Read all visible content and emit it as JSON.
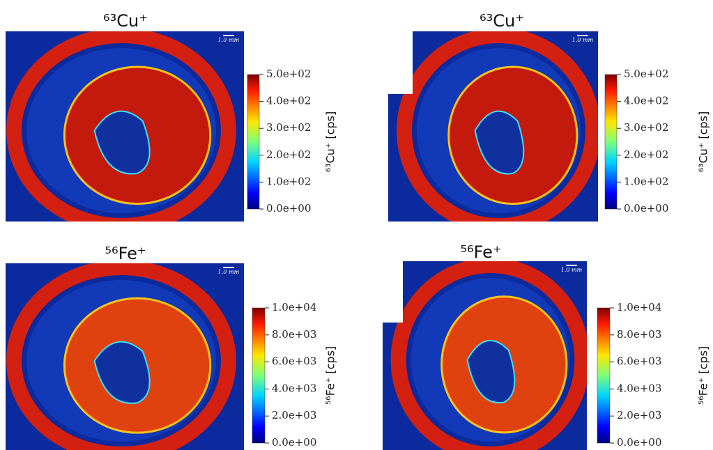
{
  "chart_data": [
    {
      "type": "heatmap",
      "title": "⁶³Cu⁺",
      "colorbar_label": "⁶³Cu⁺ [cps]",
      "scale_bar": "1.0 mm",
      "colormap": "jet",
      "clim": [
        0,
        500
      ],
      "cticks": [
        {
          "value": 0,
          "label": "0.0e+00"
        },
        {
          "value": 100,
          "label": "1.0e+02"
        },
        {
          "value": 200,
          "label": "2.0e+02"
        },
        {
          "value": 300,
          "label": "3.0e+02"
        },
        {
          "value": 400,
          "label": "4.0e+02"
        },
        {
          "value": 500,
          "label": "5.0e+02"
        }
      ]
    },
    {
      "type": "heatmap",
      "title": "⁶³Cu⁺",
      "colorbar_label": "⁶³Cu⁺ [cps]",
      "scale_bar": "1.0 mm",
      "colormap": "jet",
      "clim": [
        0,
        500
      ],
      "cticks": [
        {
          "value": 0,
          "label": "0.0e+00"
        },
        {
          "value": 100,
          "label": "1.0e+02"
        },
        {
          "value": 200,
          "label": "2.0e+02"
        },
        {
          "value": 300,
          "label": "3.0e+02"
        },
        {
          "value": 400,
          "label": "4.0e+02"
        },
        {
          "value": 500,
          "label": "5.0e+02"
        }
      ]
    },
    {
      "type": "heatmap",
      "title": "⁵⁶Fe⁺",
      "colorbar_label": "⁵⁶Fe⁺ [cps]",
      "scale_bar": "1.0 mm",
      "colormap": "jet",
      "clim": [
        0,
        10000
      ],
      "cticks": [
        {
          "value": 0,
          "label": "0.0e+00"
        },
        {
          "value": 2000,
          "label": "2.0e+03"
        },
        {
          "value": 4000,
          "label": "4.0e+03"
        },
        {
          "value": 6000,
          "label": "6.0e+03"
        },
        {
          "value": 8000,
          "label": "8.0e+03"
        },
        {
          "value": 10000,
          "label": "1.0e+04"
        }
      ]
    },
    {
      "type": "heatmap",
      "title": "⁵⁶Fe⁺",
      "colorbar_label": "⁵⁶Fe⁺ [cps]",
      "scale_bar": "1.0 mm",
      "colormap": "jet",
      "clim": [
        0,
        10000
      ],
      "cticks": [
        {
          "value": 0,
          "label": "0.0e+00"
        },
        {
          "value": 2000,
          "label": "2.0e+03"
        },
        {
          "value": 4000,
          "label": "4.0e+03"
        },
        {
          "value": 6000,
          "label": "6.0e+03"
        },
        {
          "value": 8000,
          "label": "8.0e+03"
        },
        {
          "value": 10000,
          "label": "1.0e+04"
        }
      ]
    }
  ]
}
